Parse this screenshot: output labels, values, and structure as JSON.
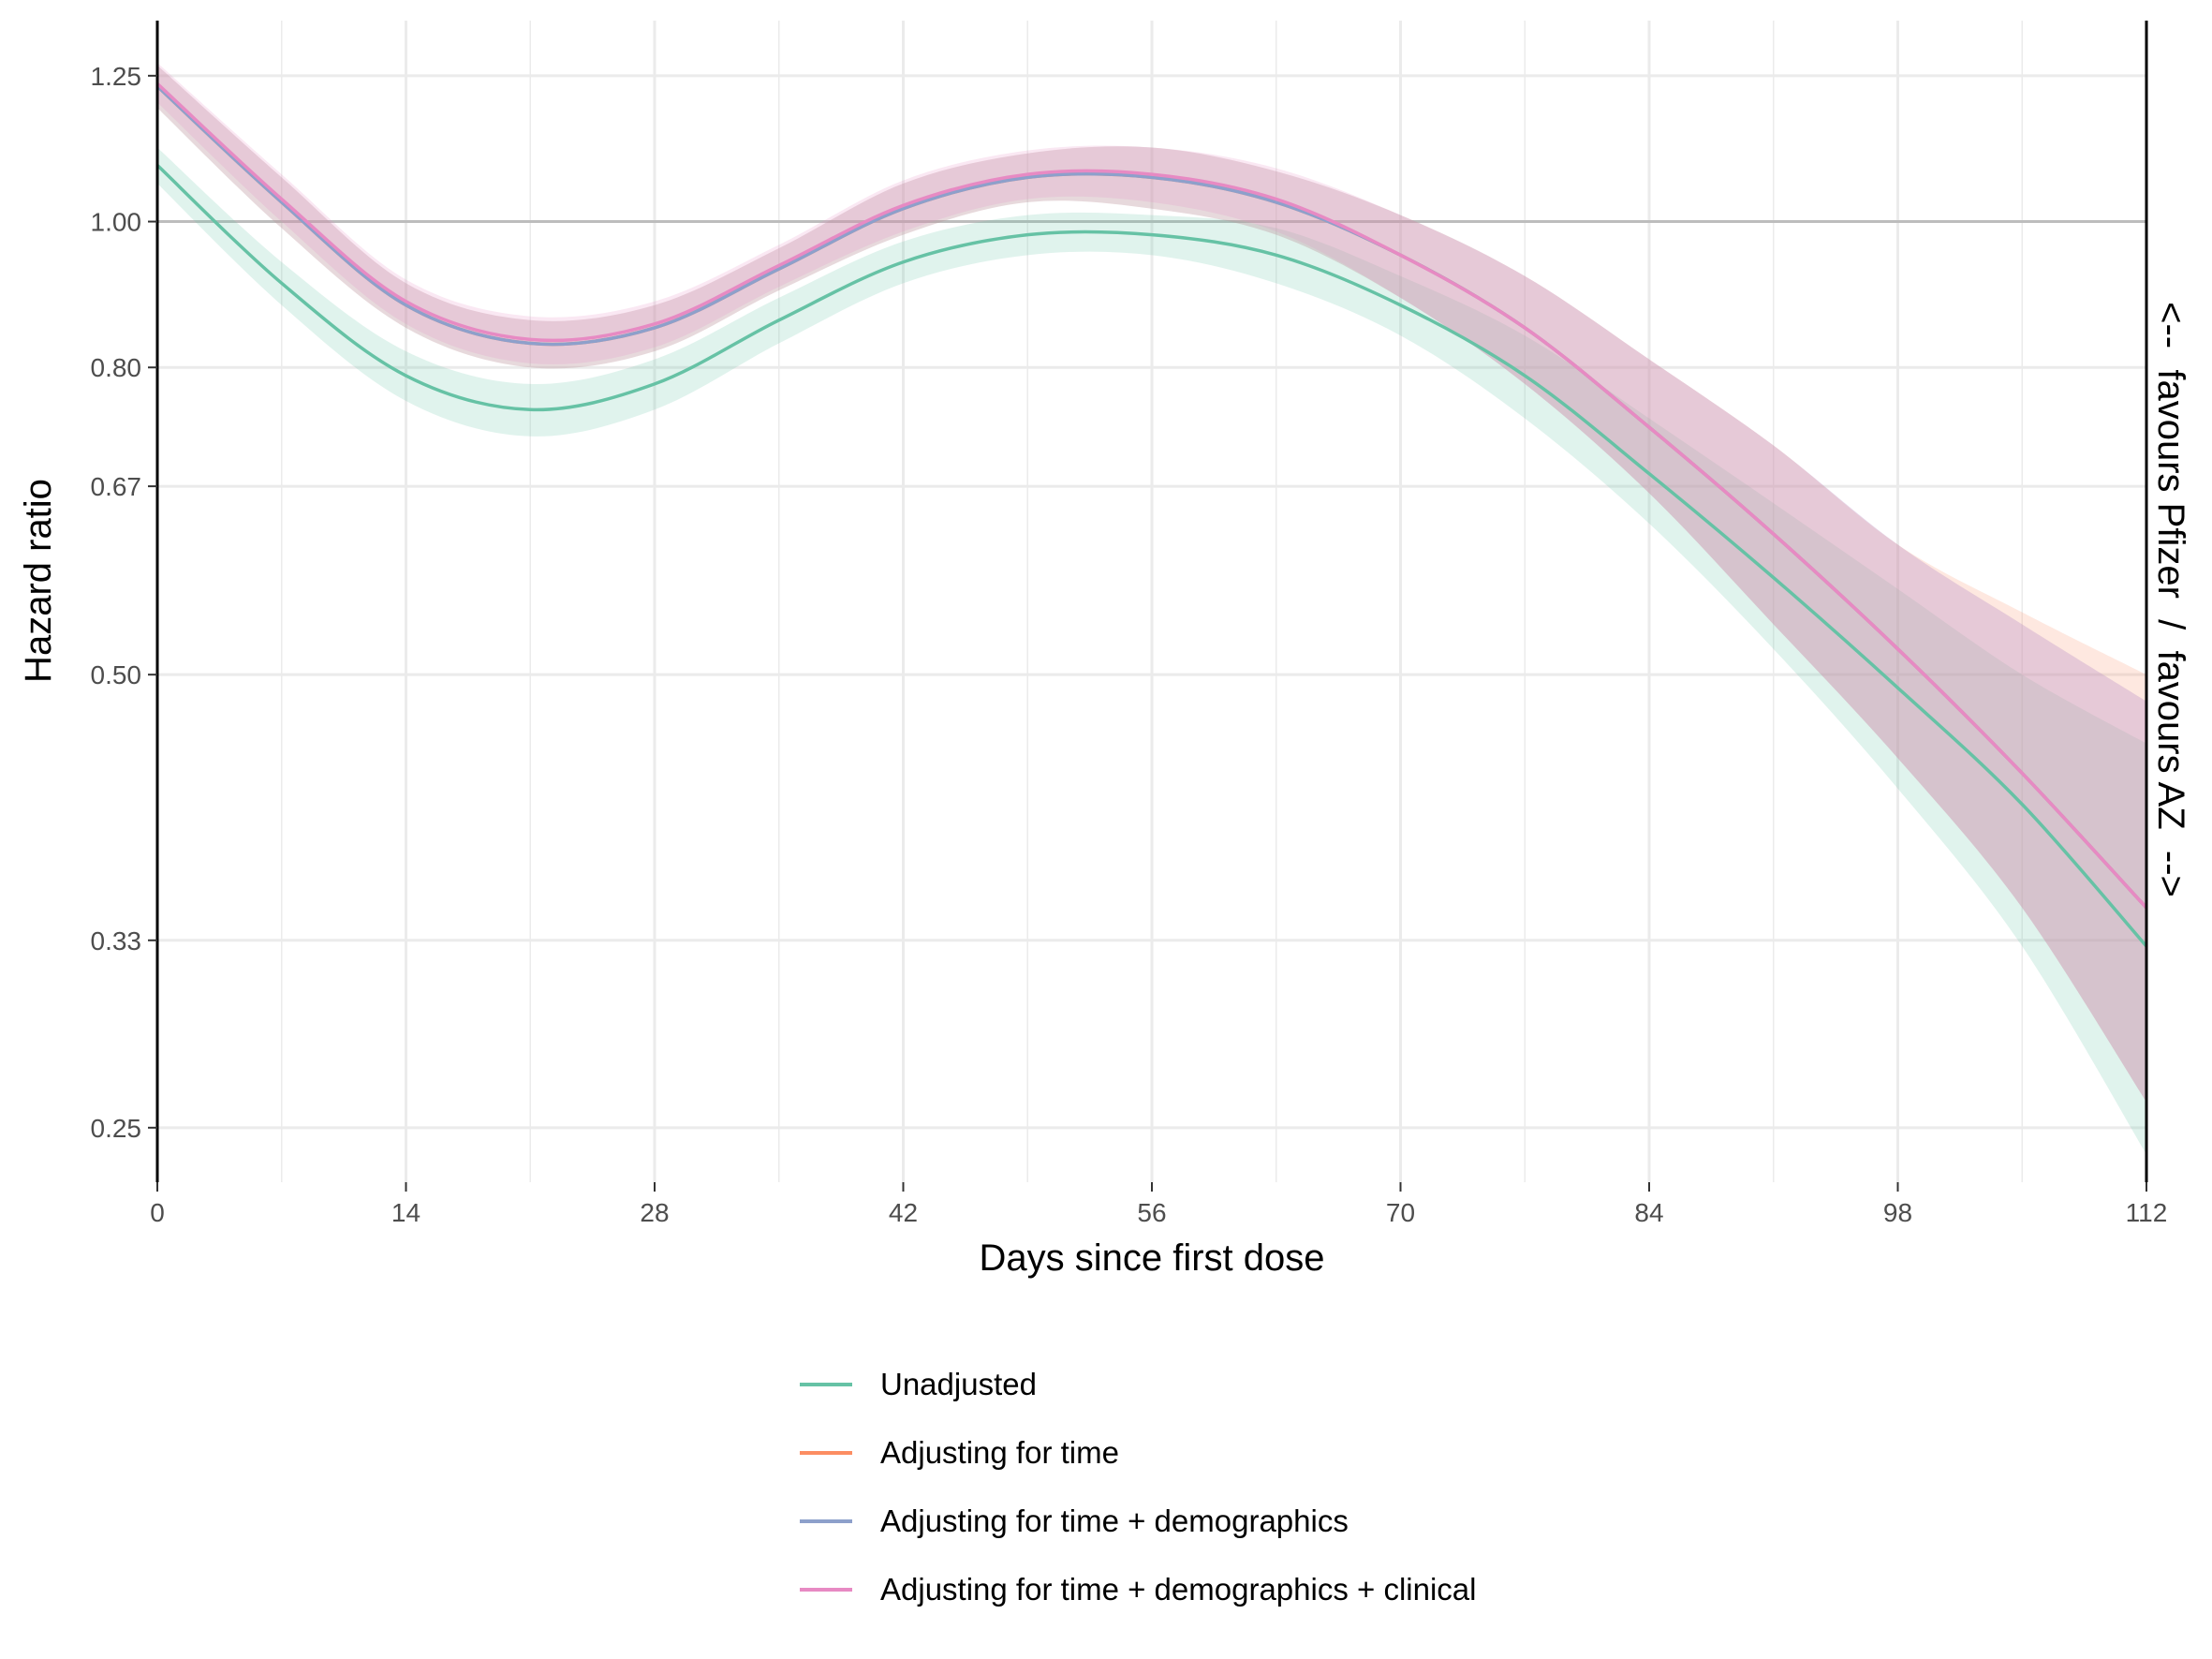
{
  "chart_data": {
    "type": "line",
    "xlabel": "Days since first dose",
    "ylabel": "Hazard ratio",
    "secondary_label": "<--  favours Pfizer  /  favours AZ  -->",
    "x_ticks": [
      0,
      14,
      28,
      42,
      56,
      70,
      84,
      98,
      112
    ],
    "y_ticks": [
      {
        "value": 0.25,
        "label": "0.25"
      },
      {
        "value": 0.333,
        "label": "0.33"
      },
      {
        "value": 0.5,
        "label": "0.50"
      },
      {
        "value": 0.667,
        "label": "0.67"
      },
      {
        "value": 0.8,
        "label": "0.80"
      },
      {
        "value": 1.0,
        "label": "1.00"
      },
      {
        "value": 1.25,
        "label": "1.25"
      }
    ],
    "y_scale": "log",
    "xlim": [
      0,
      112
    ],
    "ylim": [
      0.23,
      1.36
    ],
    "reference_line": 1.0,
    "grid": true,
    "legend_position": "bottom",
    "x": [
      0,
      7,
      14,
      21,
      28,
      35,
      42,
      49,
      56,
      63,
      70,
      77,
      84,
      91,
      98,
      105,
      112
    ],
    "series": [
      {
        "name": "Unadjusted",
        "color": "#66c2a5",
        "values": [
          1.09,
          0.91,
          0.79,
          0.75,
          0.78,
          0.86,
          0.94,
          0.98,
          0.98,
          0.95,
          0.88,
          0.79,
          0.68,
          0.58,
          0.49,
          0.41,
          0.33
        ],
        "lower": [
          1.06,
          0.88,
          0.76,
          0.72,
          0.75,
          0.83,
          0.91,
          0.95,
          0.95,
          0.91,
          0.84,
          0.74,
          0.63,
          0.52,
          0.42,
          0.33,
          0.24
        ],
        "upper": [
          1.12,
          0.94,
          0.82,
          0.78,
          0.81,
          0.89,
          0.97,
          1.01,
          1.01,
          0.99,
          0.92,
          0.84,
          0.74,
          0.65,
          0.57,
          0.5,
          0.45
        ]
      },
      {
        "name": "Adjusting for time",
        "color": "#fc8d62",
        "values": [
          1.23,
          1.03,
          0.88,
          0.83,
          0.85,
          0.93,
          1.02,
          1.07,
          1.07,
          1.03,
          0.95,
          0.85,
          0.73,
          0.62,
          0.52,
          0.43,
          0.35
        ],
        "lower": [
          1.19,
          0.99,
          0.85,
          0.8,
          0.82,
          0.9,
          0.98,
          1.03,
          1.02,
          0.98,
          0.89,
          0.78,
          0.66,
          0.54,
          0.44,
          0.35,
          0.26
        ],
        "upper": [
          1.27,
          1.07,
          0.91,
          0.86,
          0.88,
          0.96,
          1.06,
          1.11,
          1.12,
          1.08,
          1.01,
          0.92,
          0.81,
          0.71,
          0.61,
          0.55,
          0.5
        ]
      },
      {
        "name": "Adjusting for time + demographics",
        "color": "#8da0cb",
        "values": [
          1.23,
          1.03,
          0.88,
          0.83,
          0.85,
          0.93,
          1.02,
          1.07,
          1.07,
          1.03,
          0.95,
          0.85,
          0.73,
          0.62,
          0.52,
          0.43,
          0.35
        ],
        "lower": [
          1.19,
          0.99,
          0.85,
          0.8,
          0.82,
          0.9,
          0.98,
          1.03,
          1.02,
          0.98,
          0.89,
          0.78,
          0.66,
          0.54,
          0.44,
          0.35,
          0.26
        ],
        "upper": [
          1.27,
          1.07,
          0.91,
          0.86,
          0.88,
          0.96,
          1.06,
          1.11,
          1.12,
          1.08,
          1.01,
          0.92,
          0.81,
          0.71,
          0.61,
          0.54,
          0.48
        ]
      },
      {
        "name": "Adjusting for time + demographics + clinical",
        "color": "#e78ac3",
        "values": [
          1.235,
          1.035,
          0.885,
          0.835,
          0.855,
          0.935,
          1.025,
          1.075,
          1.075,
          1.035,
          0.95,
          0.85,
          0.73,
          0.62,
          0.52,
          0.43,
          0.35
        ],
        "lower": [
          1.2,
          1.0,
          0.855,
          0.805,
          0.825,
          0.905,
          0.985,
          1.035,
          1.03,
          0.985,
          0.89,
          0.78,
          0.66,
          0.54,
          0.44,
          0.35,
          0.26
        ],
        "upper": [
          1.275,
          1.075,
          0.915,
          0.865,
          0.885,
          0.965,
          1.065,
          1.115,
          1.12,
          1.085,
          1.01,
          0.92,
          0.81,
          0.71,
          0.61,
          0.54,
          0.48
        ]
      }
    ]
  }
}
